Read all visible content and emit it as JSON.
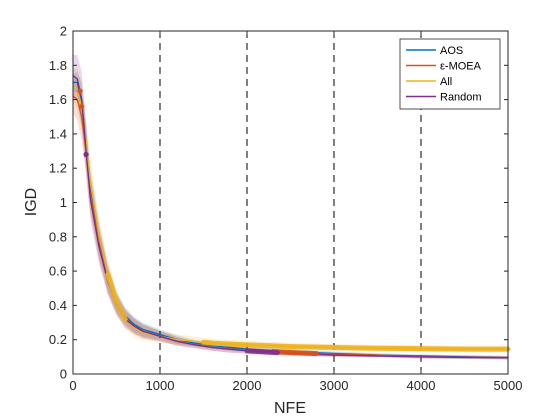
{
  "chart_data": {
    "type": "line",
    "title": "",
    "xlabel": "NFE",
    "ylabel": "IGD",
    "xlim": [
      0,
      5000
    ],
    "ylim": [
      0,
      2
    ],
    "xticks": [
      0,
      1000,
      2000,
      3000,
      4000,
      5000
    ],
    "yticks": [
      0,
      0.2,
      0.4,
      0.6,
      0.8,
      1,
      1.2,
      1.4,
      1.6,
      1.8,
      2
    ],
    "xtick_labels": [
      "0",
      "1000",
      "2000",
      "3000",
      "4000",
      "5000"
    ],
    "ytick_labels": [
      "0",
      "0.2",
      "0.4",
      "0.6",
      "0.8",
      "1",
      "1.2",
      "1.4",
      "1.6",
      "1.8",
      "2"
    ],
    "vlines": [
      1000,
      2000,
      3000,
      4000
    ],
    "grid": false,
    "legend_position": "top-right",
    "x": [
      0,
      50,
      100,
      150,
      200,
      300,
      400,
      500,
      600,
      700,
      800,
      900,
      1000,
      1200,
      1400,
      1600,
      1800,
      2000,
      2500,
      3000,
      3500,
      4000,
      4500,
      5000
    ],
    "series": [
      {
        "name": "AOS",
        "color": "#0072BD",
        "values": [
          1.7,
          1.7,
          1.58,
          1.35,
          1.08,
          0.78,
          0.56,
          0.42,
          0.34,
          0.29,
          0.26,
          0.245,
          0.23,
          0.2,
          0.18,
          0.165,
          0.155,
          0.145,
          0.13,
          0.12,
          0.11,
          0.105,
          0.1,
          0.095
        ],
        "band": [
          0.05,
          0.06,
          0.12,
          0.12,
          0.12,
          0.1,
          0.08,
          0.06,
          0.05,
          0.045,
          0.04,
          0.035,
          0.03,
          0.025,
          0.02,
          0.02,
          0.02,
          0.018,
          0.015,
          0.012,
          0.01,
          0.01,
          0.01,
          0.01
        ]
      },
      {
        "name": "ε-MOEA",
        "color": "#D95319",
        "values": [
          1.62,
          1.6,
          1.5,
          1.3,
          1.05,
          0.76,
          0.55,
          0.41,
          0.33,
          0.28,
          0.25,
          0.235,
          0.22,
          0.19,
          0.17,
          0.155,
          0.145,
          0.14,
          0.125,
          0.115,
          0.11,
          0.1,
          0.098,
          0.095
        ],
        "band": [
          0.1,
          0.12,
          0.14,
          0.13,
          0.12,
          0.1,
          0.08,
          0.06,
          0.05,
          0.045,
          0.04,
          0.035,
          0.03,
          0.025,
          0.02,
          0.02,
          0.02,
          0.018,
          0.015,
          0.012,
          0.01,
          0.01,
          0.01,
          0.01
        ]
      },
      {
        "name": "All",
        "color": "#EDB120",
        "values": [
          1.68,
          1.66,
          1.56,
          1.36,
          1.12,
          0.8,
          0.58,
          0.42,
          0.32,
          0.27,
          0.24,
          0.23,
          0.22,
          0.2,
          0.19,
          0.18,
          0.175,
          0.17,
          0.16,
          0.155,
          0.15,
          0.148,
          0.145,
          0.145
        ],
        "band": [
          0.1,
          0.12,
          0.14,
          0.13,
          0.13,
          0.11,
          0.09,
          0.07,
          0.06,
          0.05,
          0.045,
          0.04,
          0.035,
          0.03,
          0.028,
          0.025,
          0.025,
          0.025,
          0.022,
          0.02,
          0.02,
          0.02,
          0.02,
          0.02
        ]
      },
      {
        "name": "Random",
        "color": "#7E2F8E",
        "values": [
          1.74,
          1.72,
          1.6,
          1.3,
          1.02,
          0.74,
          0.54,
          0.4,
          0.32,
          0.28,
          0.25,
          0.235,
          0.22,
          0.19,
          0.17,
          0.155,
          0.145,
          0.135,
          0.12,
          0.11,
          0.105,
          0.1,
          0.097,
          0.095
        ],
        "band": [
          0.12,
          0.14,
          0.16,
          0.14,
          0.12,
          0.1,
          0.08,
          0.06,
          0.05,
          0.045,
          0.04,
          0.035,
          0.03,
          0.025,
          0.02,
          0.02,
          0.02,
          0.018,
          0.015,
          0.012,
          0.01,
          0.01,
          0.01,
          0.01
        ]
      }
    ],
    "highlights": [
      {
        "series": "All",
        "x_from": 400,
        "x_to": 600
      },
      {
        "series": "All",
        "x_from": 1500,
        "x_to": 5000
      },
      {
        "series": "ε-MOEA",
        "x_from": 2300,
        "x_to": 2800
      },
      {
        "series": "Random",
        "x_from": 2000,
        "x_to": 2350
      }
    ],
    "markers": [
      {
        "series": "ε-MOEA",
        "x": 80,
        "y": 1.65
      },
      {
        "series": "ε-MOEA",
        "x": 100,
        "y": 1.56
      },
      {
        "series": "Random",
        "x": 150,
        "y": 1.28
      }
    ]
  }
}
